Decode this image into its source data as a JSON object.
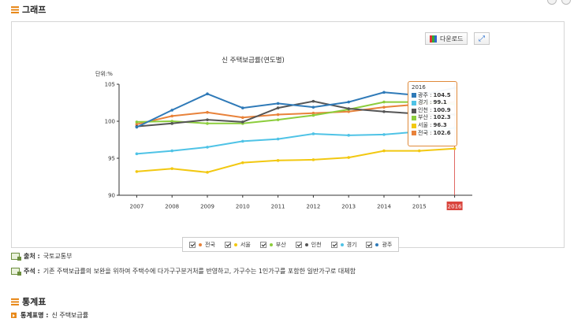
{
  "section_graph": {
    "title": "그래프"
  },
  "toolbar": {
    "download_label": "다운로드"
  },
  "chart_data": {
    "type": "line",
    "title": "신 주택보급률(연도별)",
    "unit_label": "단위:%",
    "x": [
      "2007",
      "2008",
      "2009",
      "2010",
      "2011",
      "2012",
      "2013",
      "2014",
      "2015",
      "2016"
    ],
    "highlight_x": "2016",
    "ylim": [
      90,
      105
    ],
    "yticks": [
      90,
      95,
      100,
      105
    ],
    "grid": false,
    "legend_placement": "bottom",
    "series": [
      {
        "name": "전국",
        "color": "#e8823a",
        "values": [
          99.6,
          100.7,
          101.2,
          100.5,
          100.9,
          101.1,
          101.3,
          101.9,
          102.3,
          102.6
        ]
      },
      {
        "name": "서울",
        "color": "#f2c811",
        "values": [
          93.2,
          93.6,
          93.1,
          94.4,
          94.7,
          94.8,
          95.1,
          96.0,
          96.0,
          96.3
        ]
      },
      {
        "name": "부산",
        "color": "#8ccd3c",
        "values": [
          99.9,
          100.0,
          99.7,
          99.7,
          100.2,
          100.8,
          101.6,
          102.6,
          102.6,
          102.3
        ]
      },
      {
        "name": "인천",
        "color": "#555555",
        "values": [
          99.3,
          99.7,
          100.2,
          99.9,
          101.8,
          102.7,
          101.7,
          101.3,
          101.0,
          100.9
        ]
      },
      {
        "name": "경기",
        "color": "#4fc3e6",
        "values": [
          95.6,
          96.0,
          96.5,
          97.3,
          97.6,
          98.3,
          98.1,
          98.2,
          98.6,
          99.1
        ]
      },
      {
        "name": "광주",
        "color": "#2f7ab8",
        "values": [
          99.2,
          101.5,
          103.7,
          101.8,
          102.4,
          101.9,
          102.6,
          103.9,
          103.5,
          104.5
        ]
      }
    ]
  },
  "tooltip": {
    "title": "2016",
    "rows": [
      {
        "label": "광주 : ",
        "value": "104.5",
        "color": "#2f7ab8"
      },
      {
        "label": "경기 : ",
        "value": "99.1",
        "color": "#4fc3e6"
      },
      {
        "label": "인천 : ",
        "value": "100.9",
        "color": "#555555"
      },
      {
        "label": "부산 : ",
        "value": "102.3",
        "color": "#8ccd3c"
      },
      {
        "label": "서울 : ",
        "value": "96.3",
        "color": "#f2c811"
      },
      {
        "label": "전국 : ",
        "value": "102.6",
        "color": "#e8823a"
      }
    ]
  },
  "source": {
    "label": "출처 :",
    "text": "국토교통부"
  },
  "remark": {
    "label": "주석 :",
    "text": "기존 주택보급률의 보완을 위하여 주택수에 다가구구분거처를 반영하고, 가구수는 1인가구를 포함한 일반가구로 대체함"
  },
  "section_table": {
    "title": "통계표"
  },
  "stat_name": {
    "label": "통계표명 :",
    "text": "신 주택보급률"
  }
}
